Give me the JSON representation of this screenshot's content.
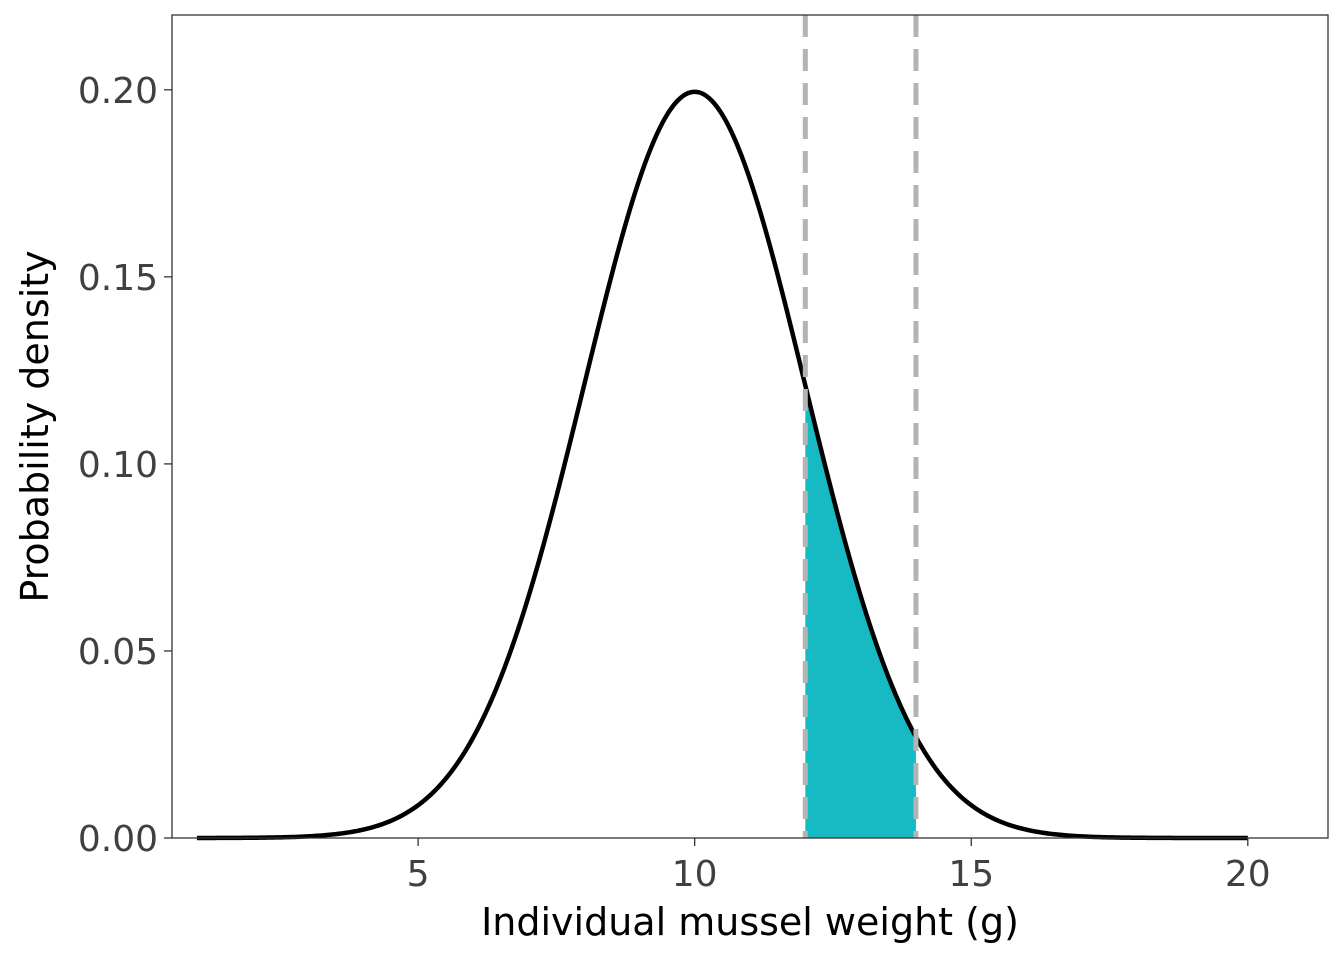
{
  "chart_data": {
    "type": "area",
    "title": "",
    "xlabel": "Individual mussel weight (g)",
    "ylabel": "Probability density",
    "xlim": [
      0.55,
      21.45
    ],
    "ylim": [
      0,
      0.22
    ],
    "x_ticks": [
      5,
      10,
      15,
      20
    ],
    "y_ticks": [
      0.0,
      0.05,
      0.1,
      0.15,
      0.2
    ],
    "x_tick_labels": [
      "5",
      "10",
      "15",
      "20"
    ],
    "y_tick_labels": [
      "0.00",
      "0.05",
      "0.10",
      "0.15",
      "0.20"
    ],
    "grid": false,
    "legend": "none",
    "curve": {
      "distribution": "normal",
      "mean": 10,
      "sd": 2,
      "x_range": [
        1,
        20
      ],
      "color": "#000000"
    },
    "shaded_region": {
      "x_from": 12,
      "x_to": 14,
      "color": "#17BAC3"
    },
    "vlines": [
      {
        "x": 12,
        "color": "#B3B3B3",
        "style": "dashed"
      },
      {
        "x": 14,
        "color": "#B3B3B3",
        "style": "dashed"
      }
    ]
  }
}
